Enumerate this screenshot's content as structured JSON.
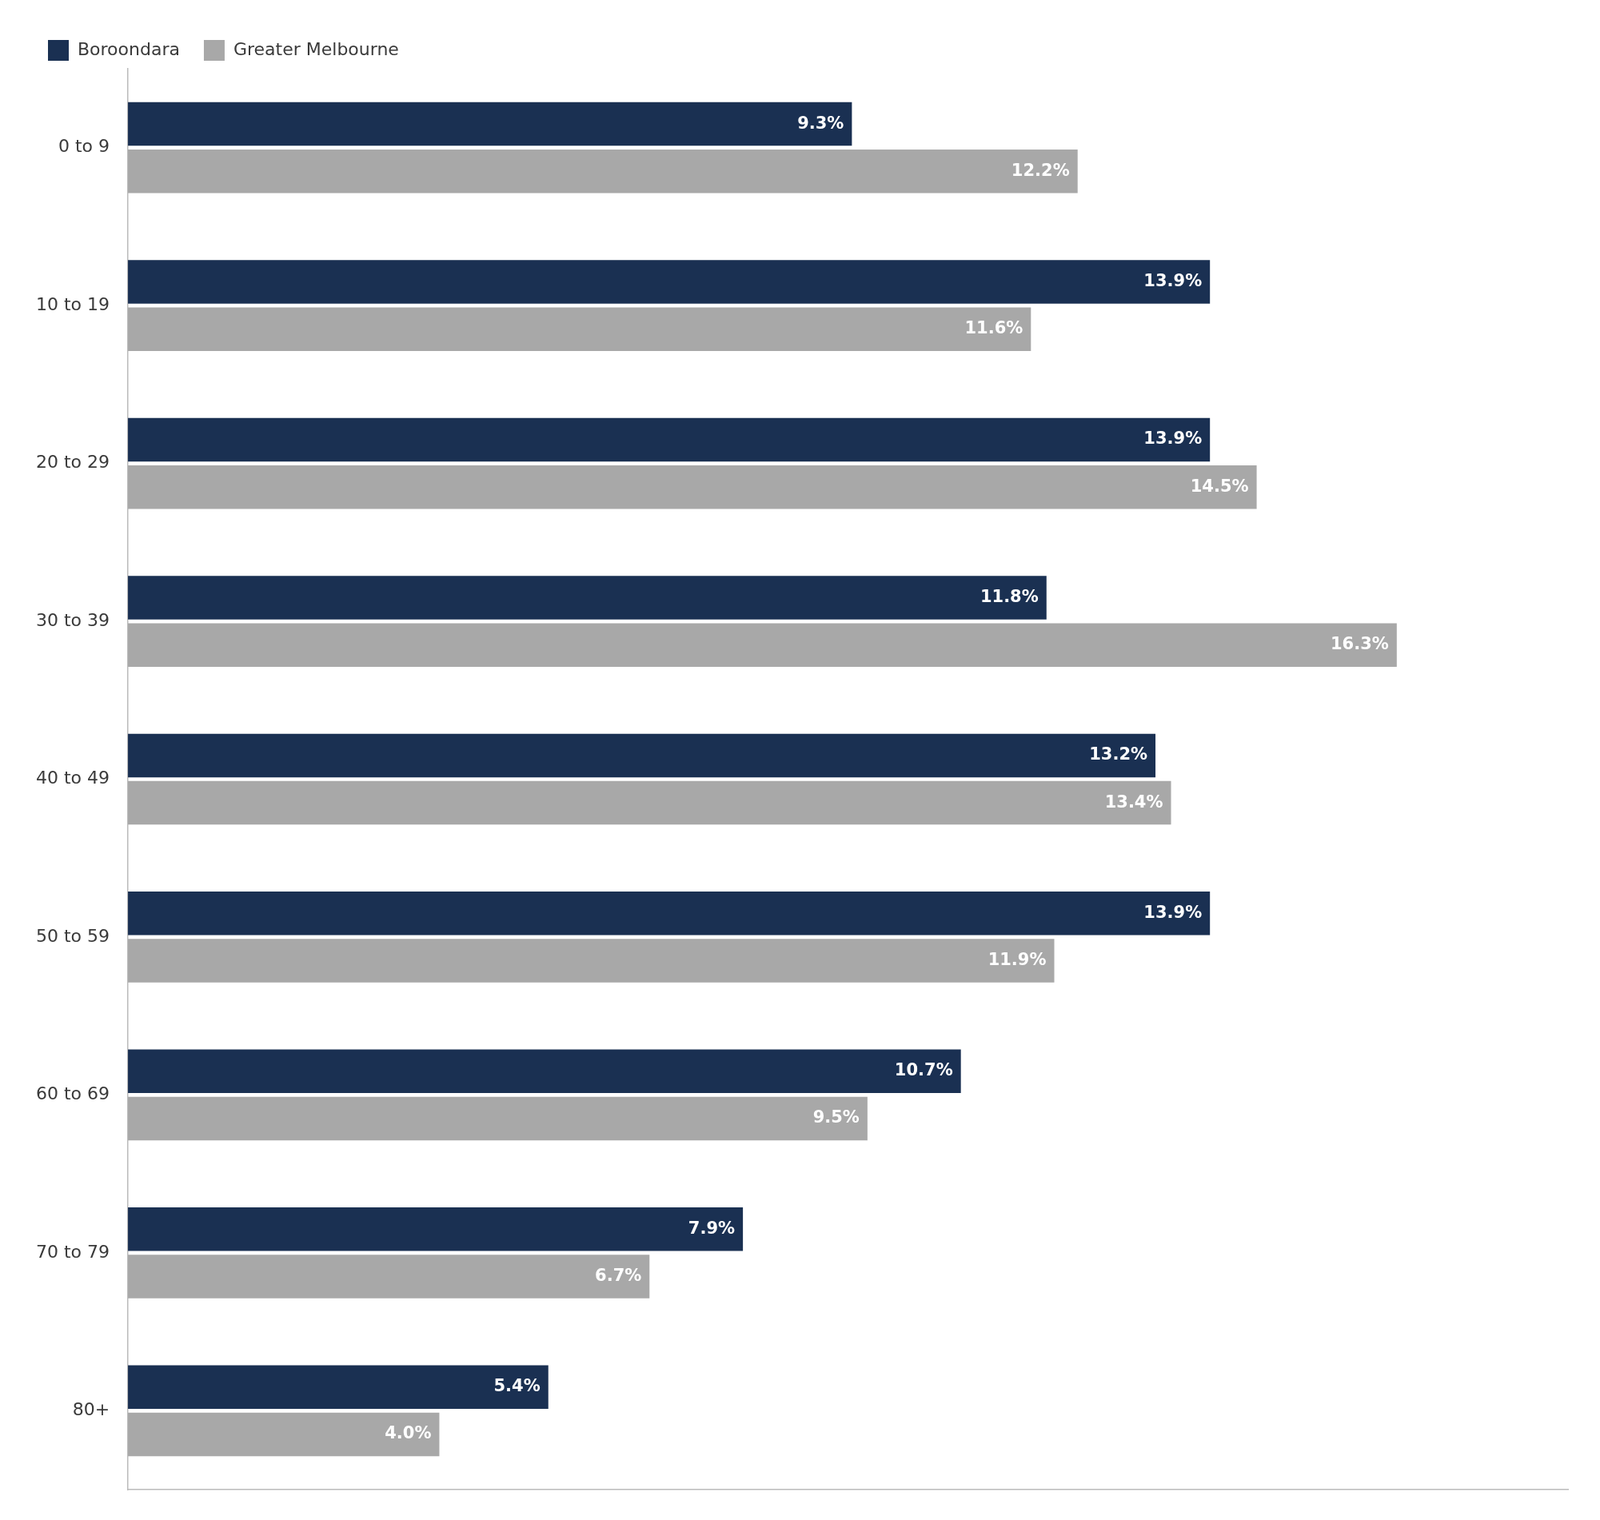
{
  "chart_data": {
    "type": "bar",
    "orientation": "horizontal",
    "categories": [
      "0 to 9",
      "10 to 19",
      "20 to 29",
      "30 to 39",
      "40 to 49",
      "50 to 59",
      "60 to 69",
      "70 to 79",
      "80+"
    ],
    "series": [
      {
        "name": "Boroondara",
        "color": "#1a3052",
        "values": [
          9.3,
          13.9,
          13.9,
          11.8,
          13.2,
          13.9,
          10.7,
          7.9,
          5.4
        ],
        "value_labels": [
          "9.3%",
          "13.9%",
          "13.9%",
          "11.8%",
          "13.2%",
          "13.9%",
          "10.7%",
          "7.9%",
          "5.4%"
        ]
      },
      {
        "name": "Greater Melbourne",
        "color": "#a8a8a8",
        "values": [
          12.2,
          11.6,
          14.5,
          16.3,
          13.4,
          11.9,
          9.5,
          6.7,
          4.0
        ],
        "value_labels": [
          "12.2%",
          "11.6%",
          "14.5%",
          "16.3%",
          "13.4%",
          "11.9%",
          "9.5%",
          "6.7%",
          "4.0%"
        ]
      }
    ],
    "xlim": [
      0,
      18.5
    ],
    "grid": false,
    "legend": "upper left",
    "data_labels": true,
    "tick_labels": "y"
  }
}
